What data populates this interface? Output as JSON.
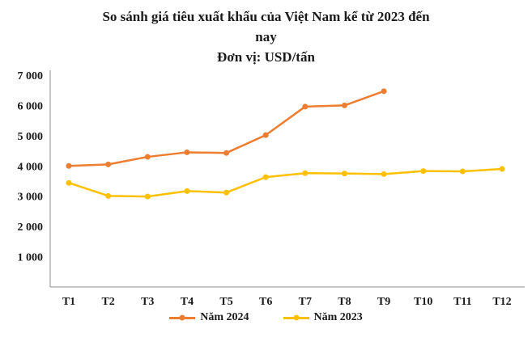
{
  "title": {
    "line1": "So sánh giá tiêu xuất khẩu của Việt Nam kể từ 2023 đến",
    "line2": "nay",
    "subtitle": "Đơn vị: USD/tấn"
  },
  "chart_data": {
    "type": "line",
    "title": "So sánh giá tiêu xuất khẩu của Việt Nam kể từ 2023 đến nay",
    "subtitle": "Đơn vị: USD/tấn",
    "categories": [
      "T1",
      "T2",
      "T3",
      "T4",
      "T5",
      "T6",
      "T7",
      "T8",
      "T9",
      "T10",
      "T11",
      "T12"
    ],
    "series": [
      {
        "name": "Năm 2024",
        "color": "#ED7D31",
        "values": [
          4000,
          4050,
          4300,
          4450,
          4430,
          5020,
          5960,
          6000,
          6470,
          null,
          null,
          null
        ]
      },
      {
        "name": "Năm 2023",
        "color": "#FFC000",
        "values": [
          3440,
          3010,
          2990,
          3170,
          3120,
          3630,
          3760,
          3750,
          3730,
          3830,
          3820,
          3900
        ]
      }
    ],
    "xlabel": "",
    "ylabel": "",
    "ylim": [
      0,
      7000
    ],
    "yticks": [
      1000,
      2000,
      3000,
      4000,
      5000,
      6000,
      7000
    ],
    "ytick_labels": [
      "1 000",
      "2 000",
      "3 000",
      "4 000",
      "5 000",
      "6 000",
      "7 000"
    ],
    "grid": false,
    "legend_position": "bottom",
    "axis_color": "#8c8c8c"
  }
}
